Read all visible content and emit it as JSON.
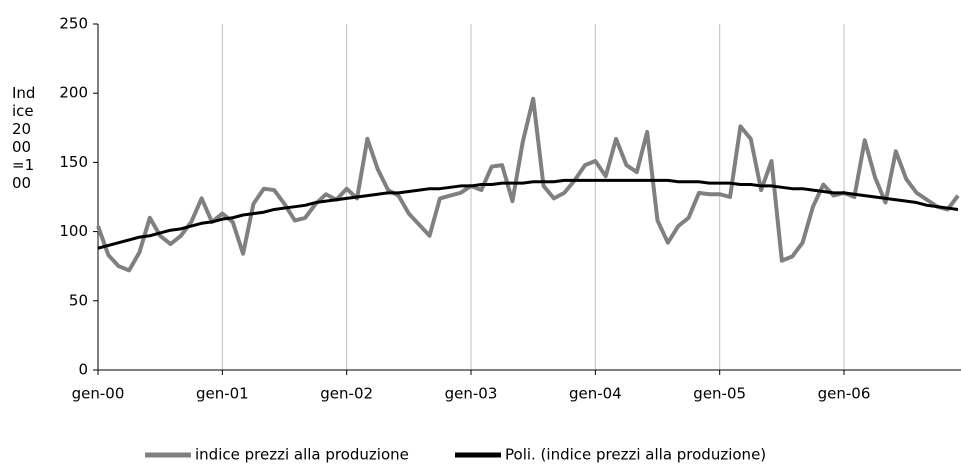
{
  "chart_data": {
    "type": "line",
    "y_label": "Indice 2000=100",
    "categories": [
      "gen-00",
      null,
      null,
      null,
      null,
      null,
      null,
      null,
      null,
      null,
      null,
      null,
      "gen-01",
      null,
      null,
      null,
      null,
      null,
      null,
      null,
      null,
      null,
      null,
      null,
      "gen-02",
      null,
      null,
      null,
      null,
      null,
      null,
      null,
      null,
      null,
      null,
      null,
      "gen-03",
      null,
      null,
      null,
      null,
      null,
      null,
      null,
      null,
      null,
      null,
      null,
      "gen-04",
      null,
      null,
      null,
      null,
      null,
      null,
      null,
      null,
      null,
      null,
      null,
      "gen-05",
      null,
      null,
      null,
      null,
      null,
      null,
      null,
      null,
      null,
      null,
      null,
      "gen-06",
      null,
      null,
      null,
      null,
      null,
      null,
      null,
      null,
      null,
      null,
      null
    ],
    "series": [
      {
        "name": "indice prezzi alla produzione",
        "color": "#808080",
        "width": 4,
        "values": [
          104,
          83,
          75,
          72,
          85,
          110,
          97,
          91,
          97,
          107,
          124,
          107,
          113,
          107,
          84,
          120,
          131,
          130,
          120,
          108,
          110,
          120,
          127,
          123,
          131,
          124,
          167,
          145,
          130,
          126,
          113,
          105,
          97,
          124,
          126,
          128,
          133,
          130,
          147,
          148,
          122,
          165,
          196,
          133,
          124,
          128,
          137,
          148,
          151,
          140,
          167,
          148,
          143,
          172,
          108,
          92,
          104,
          110,
          128,
          127,
          127,
          125,
          176,
          167,
          130,
          151,
          79,
          82,
          92,
          118,
          134,
          126,
          128,
          125,
          166,
          139,
          121,
          158,
          138,
          128,
          123,
          118,
          116,
          126
        ]
      },
      {
        "name": "Poli. (indice prezzi alla produzione)",
        "color": "#000000",
        "width": 3,
        "values": [
          88,
          90,
          92,
          94,
          96,
          97,
          99,
          101,
          102,
          104,
          106,
          107,
          109,
          110,
          112,
          113,
          114,
          116,
          117,
          118,
          119,
          121,
          122,
          123,
          124,
          125,
          126,
          127,
          128,
          128,
          129,
          130,
          131,
          131,
          132,
          133,
          133,
          134,
          134,
          135,
          135,
          135,
          136,
          136,
          136,
          137,
          137,
          137,
          137,
          137,
          137,
          137,
          137,
          137,
          137,
          137,
          136,
          136,
          136,
          135,
          135,
          135,
          134,
          134,
          133,
          133,
          132,
          131,
          131,
          130,
          129,
          128,
          128,
          127,
          126,
          125,
          124,
          123,
          122,
          121,
          119,
          118,
          117,
          116
        ]
      }
    ],
    "ylim": [
      0,
      250
    ],
    "yticks": [
      0,
      50,
      100,
      150,
      200,
      250
    ],
    "xgrid": true
  }
}
